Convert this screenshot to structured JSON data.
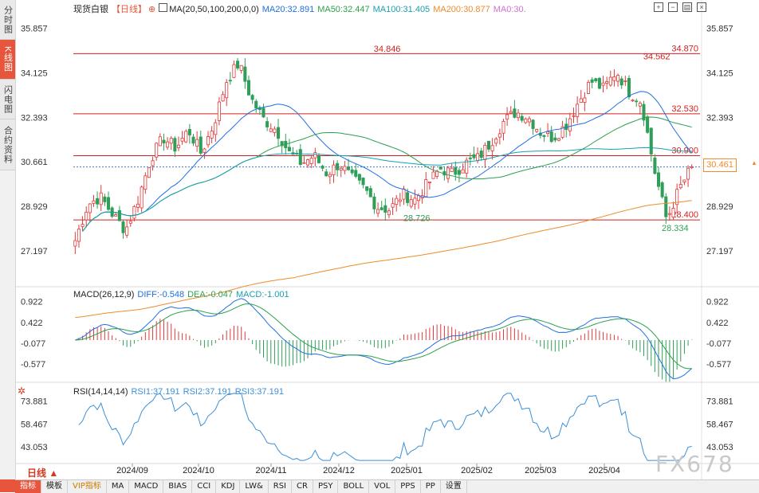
{
  "sidebar": {
    "tabs": [
      {
        "label": "分时图",
        "active": false
      },
      {
        "label": "K线图",
        "active": true
      },
      {
        "label": "闪电图",
        "active": false
      },
      {
        "label": "合约资料",
        "active": false
      }
    ]
  },
  "header": {
    "symbol": "现货白银",
    "period_tag": "【日线】",
    "ma_title": "MA(20,50,100,200,0,0)",
    "ma_values": [
      {
        "label": "MA20:32.891",
        "color": "#1f6fe0"
      },
      {
        "label": "MA50:32.447",
        "color": "#2aa04a"
      },
      {
        "label": "MA100:31.405",
        "color": "#18a0b0"
      },
      {
        "label": "MA200:30.877",
        "color": "#f08a2c"
      },
      {
        "label": "MA0:30.",
        "color": "#d070d0"
      }
    ],
    "toolbar_icons": [
      "zoom-in-icon",
      "zoom-out-icon",
      "layout-icon",
      "cross-icon"
    ]
  },
  "price_panel": {
    "y_ticks": [
      "35.857",
      "34.125",
      "32.393",
      "30.661",
      "28.929",
      "27.197"
    ],
    "ylim": [
      25.8,
      36.4
    ],
    "h_lines": [
      {
        "value": 34.87,
        "label": "34.870"
      },
      {
        "value": 32.53,
        "label": "32.530"
      },
      {
        "value": 30.9,
        "label": "30.900"
      },
      {
        "value": 28.4,
        "label": "28.400"
      }
    ],
    "current_price": {
      "value": 30.461,
      "label": "30.461"
    },
    "marks": [
      {
        "value": 34.846,
        "label": "34.846"
      },
      {
        "value": 34.562,
        "label": "34.562"
      },
      {
        "value": 28.726,
        "label": "28.726"
      },
      {
        "value": 28.334,
        "label": "28.334"
      }
    ]
  },
  "macd_panel": {
    "title": "MACD(26,12,9)",
    "diff": "DIFF:-0.548",
    "dea": "DEA:-0.047",
    "macd": "MACD:-1.001",
    "y_ticks": [
      "0.922",
      "0.422",
      "-0.077",
      "-0.577"
    ],
    "ylim": [
      -1.05,
      1.05
    ]
  },
  "rsi_panel": {
    "title": "RSI(14,14,14)",
    "rsi1": "RSI1:37.191",
    "rsi2": "RSI2:37.191",
    "rsi3": "RSI3:37.191",
    "y_ticks": [
      "73.881",
      "58.467",
      "43.053"
    ],
    "ylim": [
      33,
      80
    ]
  },
  "x_axis": {
    "labels": [
      "2024/09",
      "2024/10",
      "2024/11",
      "2024/12",
      "2025/01",
      "2025/02",
      "2025/03",
      "2025/04"
    ]
  },
  "period_selector": "日线",
  "bottom_tabs": [
    {
      "label": "指标",
      "active": true
    },
    {
      "label": "模板"
    },
    {
      "label": "VIP指标",
      "vip": true
    },
    {
      "label": "MA"
    },
    {
      "label": "MACD"
    },
    {
      "label": "BIAS"
    },
    {
      "label": "CCI"
    },
    {
      "label": "KDJ"
    },
    {
      "label": "LW&"
    },
    {
      "label": "RSI"
    },
    {
      "label": "CR"
    },
    {
      "label": "PSY"
    },
    {
      "label": "BOLL"
    },
    {
      "label": "VOL"
    },
    {
      "label": "PPS"
    },
    {
      "label": "PP"
    },
    {
      "label": "设置"
    }
  ],
  "watermark": "FX678",
  "chart_data": {
    "type": "candlestick",
    "anchor_closes": [
      27.6,
      29.0,
      29.3,
      28.6,
      28.0,
      29.2,
      30.8,
      31.6,
      31.2,
      31.9,
      31.0,
      32.1,
      33.8,
      34.5,
      33.1,
      32.3,
      31.9,
      31.0,
      30.6,
      30.9,
      30.2,
      30.6,
      30.0,
      29.6,
      28.9,
      28.8,
      29.4,
      29.2,
      29.8,
      30.4,
      30.2,
      30.6,
      30.8,
      31.4,
      32.2,
      32.6,
      32.4,
      31.8,
      31.6,
      32.1,
      33.0,
      33.8,
      33.5,
      34.2,
      33.4,
      33.0,
      30.4,
      28.4,
      29.6,
      30.46
    ]
  }
}
